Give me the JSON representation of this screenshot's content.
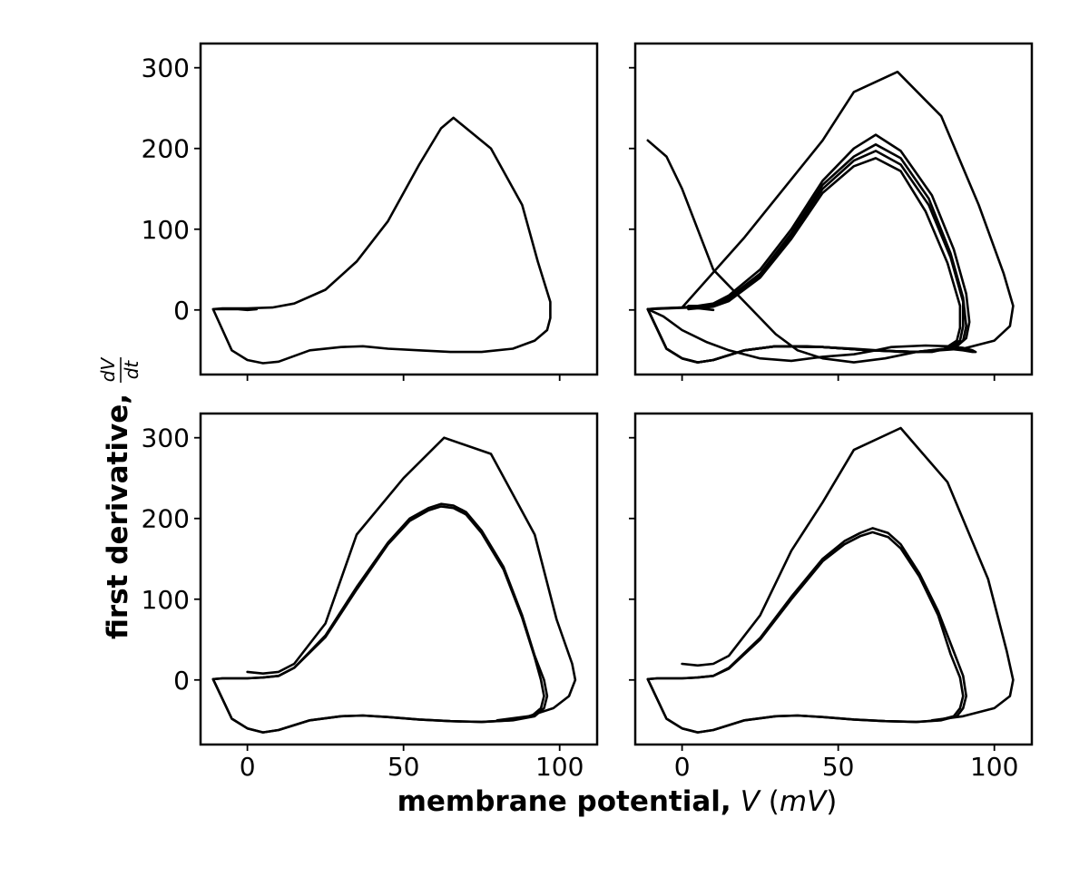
{
  "chart_data": {
    "type": "line",
    "layout": "2x2 grid, shared x and y axes",
    "xlabel": {
      "bold": "membrane potential,",
      "var": "V",
      "unit_open": " (",
      "unit": "mV",
      "unit_close": ")"
    },
    "ylabel": {
      "bold": "first derivative,",
      "frac_num": "dV",
      "frac_den": "dt"
    },
    "xticks": [
      0,
      50,
      100
    ],
    "yticks": [
      0,
      100,
      200,
      300
    ],
    "xlim": [
      -15,
      112
    ],
    "ylim": [
      -80,
      330
    ],
    "line_color": "#000000",
    "panels": [
      {
        "name": "top-left",
        "series": [
          {
            "x": [
              0,
              3,
              0,
              -3,
              -11,
              -8,
              0,
              8,
              15,
              25,
              35,
              45,
              55,
              62,
              66,
              78,
              88,
              93,
              97,
              97,
              96,
              92,
              85,
              75,
              65,
              55,
              45,
              37,
              30,
              20,
              10,
              5,
              0,
              -5,
              -11
            ],
            "y": [
              2,
              1,
              0,
              1,
              1,
              2,
              2,
              3,
              8,
              25,
              60,
              110,
              180,
              225,
              238,
              200,
              130,
              60,
              10,
              -10,
              -25,
              -38,
              -48,
              -52,
              -52,
              -50,
              -48,
              -45,
              -46,
              -50,
              -64,
              -66,
              -62,
              -50,
              1
            ]
          }
        ]
      },
      {
        "name": "top-right",
        "series": [
          {
            "x": [
              10,
              3,
              -11,
              -6,
              0,
              8,
              15,
              25,
              35,
              45,
              55,
              62,
              67,
              78,
              85,
              90,
              93,
              94,
              93,
              90,
              85,
              75,
              65,
              55,
              45,
              37,
              30,
              20,
              10,
              5,
              0,
              -5,
              -11
            ],
            "y": [
              0,
              3,
              1,
              -8,
              -25,
              -40,
              -50,
              -60,
              -63,
              -58,
              -55,
              -50,
              -46,
              -44,
              -45,
              -47,
              -50,
              -52,
              -52,
              -50,
              -48,
              -52,
              -60,
              -65,
              -60,
              -50,
              -30,
              10,
              50,
              100,
              150,
              190,
              210
            ]
          },
          {
            "x": [
              2,
              5,
              10,
              15,
              25,
              35,
              45,
              55,
              62,
              70,
              80,
              87,
              91,
              92,
              91,
              88,
              80,
              70,
              55,
              40,
              30,
              20,
              10,
              5,
              0,
              -5,
              -11,
              -8,
              0,
              5,
              10
            ],
            "y": [
              5,
              5,
              8,
              18,
              50,
              100,
              160,
              200,
              217,
              197,
              142,
              75,
              20,
              -15,
              -35,
              -45,
              -52,
              -52,
              -48,
              -45,
              -45,
              -50,
              -62,
              -65,
              -60,
              -48,
              1,
              2,
              3,
              5,
              5
            ]
          },
          {
            "x": [
              2,
              5,
              10,
              15,
              25,
              35,
              45,
              55,
              62,
              70,
              79,
              86,
              90,
              91,
              90,
              86,
              75,
              60,
              45,
              30,
              20,
              10,
              5,
              0,
              -5,
              -11
            ],
            "y": [
              3,
              4,
              6,
              15,
              45,
              95,
              155,
              190,
              205,
              188,
              138,
              70,
              15,
              -20,
              -38,
              -48,
              -52,
              -50,
              -46,
              -45,
              -50,
              -62,
              -65,
              -60,
              -48,
              1
            ]
          },
          {
            "x": [
              2,
              5,
              10,
              15,
              25,
              35,
              45,
              55,
              62,
              70,
              79,
              86,
              90,
              90,
              89,
              85,
              75,
              60,
              45,
              30,
              20,
              10,
              5,
              0,
              -5,
              -11
            ],
            "y": [
              2,
              3,
              5,
              13,
              43,
              92,
              150,
              185,
              197,
              180,
              130,
              65,
              10,
              -20,
              -38,
              -48,
              -52,
              -50,
              -46,
              -45,
              -50,
              -62,
              -65,
              -60,
              -48,
              1
            ]
          },
          {
            "x": [
              2,
              5,
              10,
              15,
              25,
              35,
              45,
              55,
              62,
              70,
              78,
              85,
              89,
              89,
              88,
              84,
              75,
              60,
              45,
              30,
              20,
              10,
              5,
              0,
              -5,
              -11
            ],
            "y": [
              1,
              2,
              4,
              11,
              40,
              88,
              145,
              178,
              188,
              172,
              122,
              58,
              5,
              -22,
              -38,
              -48,
              -52,
              -50,
              -46,
              -45,
              -50,
              -62,
              -65,
              -60,
              -48,
              1
            ]
          },
          {
            "x": [
              -11,
              0,
              20,
              45,
              55,
              69,
              83,
              95,
              103,
              106,
              105,
              100,
              90,
              75,
              60,
              45
            ],
            "y": [
              1,
              3,
              90,
              210,
              270,
              295,
              240,
              130,
              45,
              5,
              -20,
              -38,
              -48,
              -52,
              -50,
              -46
            ]
          }
        ]
      },
      {
        "name": "bottom-left",
        "series": [
          {
            "x": [
              0,
              5,
              10,
              15,
              25,
              35,
              50,
              63,
              78,
              92,
              99,
              104,
              105,
              103,
              98,
              90,
              80
            ],
            "y": [
              10,
              8,
              10,
              20,
              70,
              180,
              250,
              300,
              280,
              180,
              75,
              20,
              0,
              -20,
              -35,
              -45,
              -50
            ]
          },
          {
            "x": [
              -11,
              -8,
              0,
              5,
              10,
              15,
              25,
              35,
              45,
              52,
              58,
              62,
              66,
              70,
              75,
              82,
              88,
              92,
              95,
              96,
              95,
              92,
              85,
              75,
              65,
              55,
              45,
              37,
              30,
              20,
              10,
              5,
              0,
              -5,
              -11
            ],
            "y": [
              1,
              2,
              2,
              3,
              5,
              15,
              55,
              115,
              170,
              200,
              213,
              218,
              216,
              208,
              185,
              140,
              80,
              30,
              0,
              -20,
              -35,
              -45,
              -50,
              -52,
              -51,
              -49,
              -46,
              -44,
              -45,
              -50,
              -62,
              -65,
              -60,
              -48,
              1
            ]
          },
          {
            "x": [
              -11,
              -8,
              0,
              5,
              10,
              15,
              25,
              35,
              45,
              52,
              58,
              62,
              66,
              70,
              75,
              82,
              88,
              92,
              94,
              95,
              94,
              91,
              84,
              75,
              65,
              55,
              45,
              37,
              30,
              20,
              10,
              5,
              0,
              -5,
              -11
            ],
            "y": [
              1,
              2,
              2,
              3,
              5,
              15,
              53,
              112,
              168,
              197,
              210,
              215,
              213,
              205,
              182,
              137,
              77,
              28,
              0,
              -20,
              -35,
              -45,
              -50,
              -52,
              -51,
              -49,
              -46,
              -44,
              -45,
              -50,
              -62,
              -65,
              -60,
              -48,
              1
            ]
          }
        ]
      },
      {
        "name": "bottom-right",
        "series": [
          {
            "x": [
              0,
              5,
              10,
              15,
              25,
              35,
              45,
              55,
              70,
              85,
              98,
              104,
              106,
              105,
              100,
              90,
              80
            ],
            "y": [
              20,
              18,
              20,
              30,
              80,
              160,
              220,
              285,
              312,
              245,
              125,
              35,
              0,
              -20,
              -35,
              -45,
              -50
            ]
          },
          {
            "x": [
              -11,
              -8,
              0,
              5,
              10,
              15,
              25,
              35,
              45,
              52,
              57,
              61,
              66,
              70,
              76,
              82,
              87,
              90,
              91,
              90,
              88,
              83,
              75,
              65,
              55,
              45,
              37,
              30,
              20,
              10,
              5,
              0,
              -5,
              -11
            ],
            "y": [
              1,
              2,
              2,
              3,
              5,
              15,
              52,
              103,
              150,
              172,
              182,
              188,
              182,
              168,
              132,
              85,
              35,
              5,
              -20,
              -35,
              -45,
              -50,
              -52,
              -51,
              -49,
              -46,
              -44,
              -45,
              -50,
              -62,
              -65,
              -60,
              -48,
              1
            ]
          },
          {
            "x": [
              -11,
              -8,
              0,
              5,
              10,
              15,
              25,
              35,
              45,
              52,
              57,
              61,
              66,
              70,
              76,
              82,
              86,
              89,
              90,
              89,
              87,
              82,
              75,
              65,
              55,
              45,
              37,
              30,
              20,
              10,
              5,
              0,
              -5,
              -11
            ],
            "y": [
              1,
              2,
              2,
              3,
              5,
              14,
              50,
              100,
              147,
              168,
              178,
              183,
              177,
              163,
              128,
              80,
              32,
              3,
              -20,
              -35,
              -45,
              -50,
              -52,
              -51,
              -49,
              -46,
              -44,
              -45,
              -50,
              -62,
              -65,
              -60,
              -48,
              1
            ]
          }
        ]
      }
    ]
  }
}
